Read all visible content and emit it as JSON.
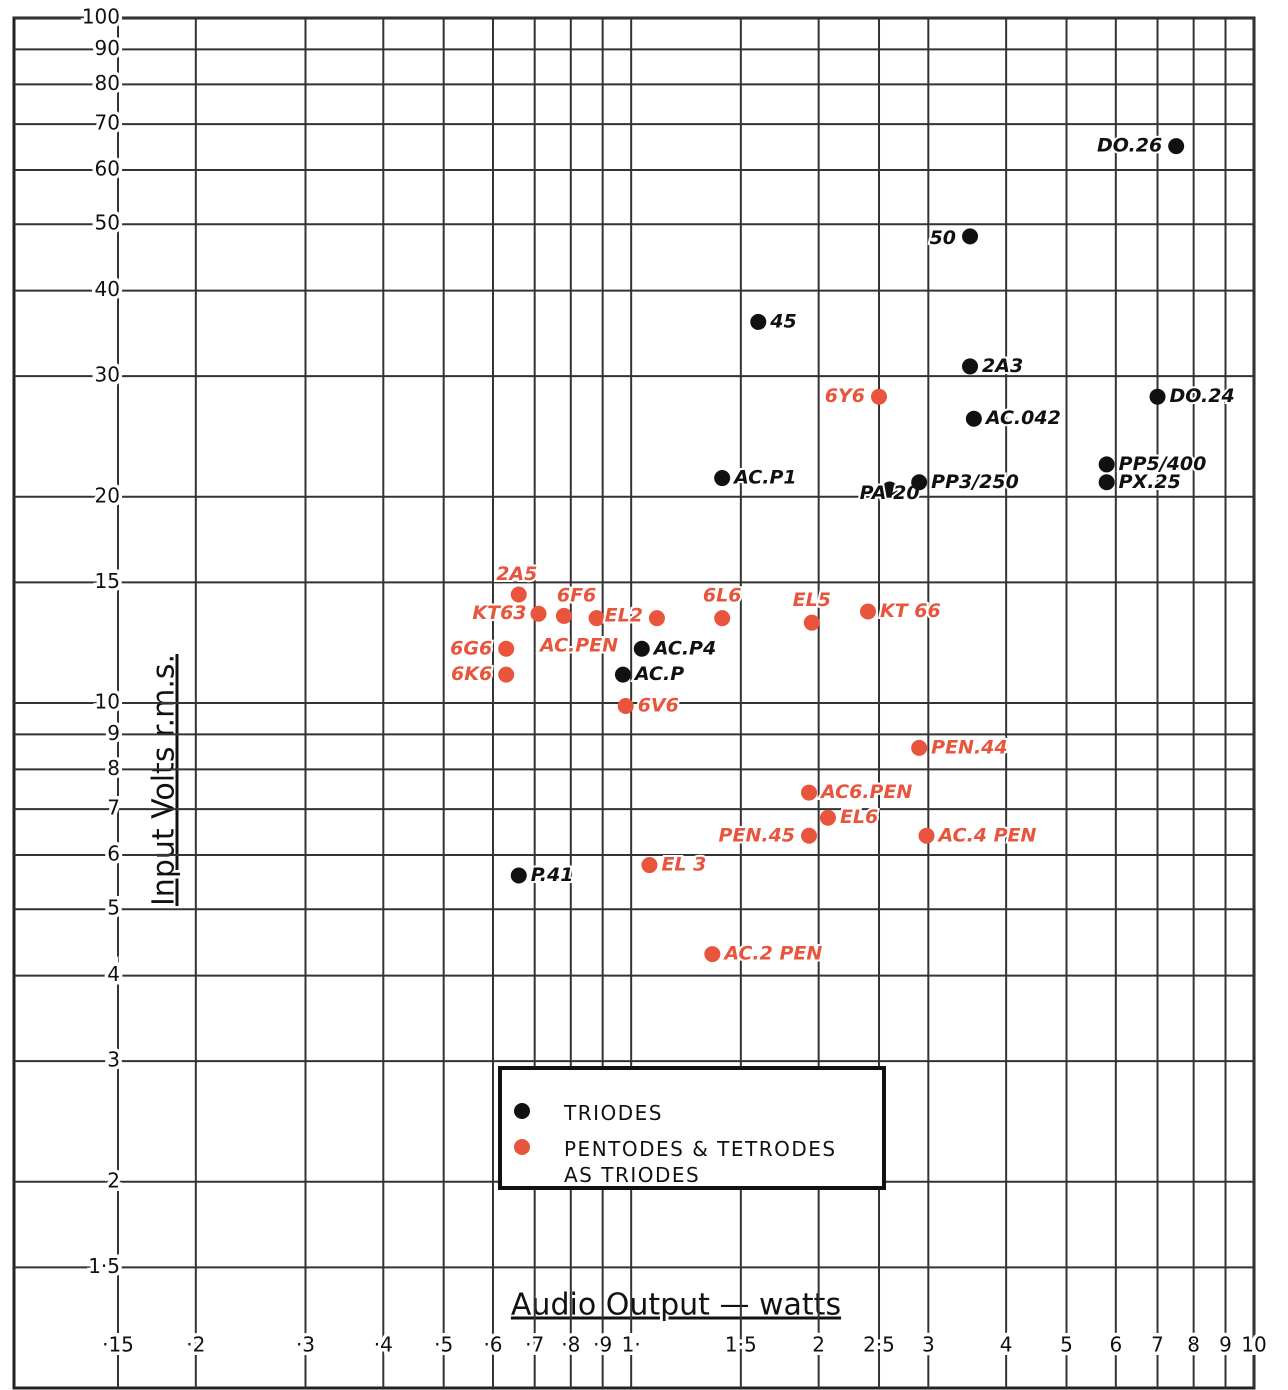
{
  "chart_data": {
    "type": "scatter",
    "x_label": "Audio Output — watts",
    "y_label": "Input Volts r.m.s.",
    "xscale": "log",
    "yscale": "log",
    "grid": true,
    "legend": "lower center",
    "xlim": [
      0.15,
      10
    ],
    "ylim": [
      1,
      100
    ],
    "xticks": [
      {
        "value": 0.15,
        "label": "·15"
      },
      {
        "value": 0.2,
        "label": "·2"
      },
      {
        "value": 0.3,
        "label": "·3"
      },
      {
        "value": 0.4,
        "label": "·4"
      },
      {
        "value": 0.5,
        "label": "·5"
      },
      {
        "value": 0.6,
        "label": "·6"
      },
      {
        "value": 0.7,
        "label": "·7"
      },
      {
        "value": 0.8,
        "label": "·8"
      },
      {
        "value": 0.9,
        "label": "·9"
      },
      {
        "value": 1,
        "label": "1·"
      },
      {
        "value": 1.5,
        "label": "1·5"
      },
      2,
      {
        "value": 2.5,
        "label": "2·5"
      },
      3,
      4,
      5,
      6,
      7,
      8,
      9,
      10
    ],
    "yticks": [
      {
        "value": 1.5,
        "label": "1·5"
      },
      2,
      3,
      4,
      5,
      6,
      7,
      8,
      9,
      10,
      15,
      20,
      30,
      40,
      50,
      60,
      70,
      80,
      90,
      100
    ],
    "series": [
      {
        "name": "TRIODES",
        "color": "#111111",
        "labels": [
          "DO.26",
          "50",
          "45",
          "2A3",
          "AC.042",
          "DO.24",
          "AC.P1",
          "PA 20",
          "PP3/250",
          "PP5/400",
          "PX.25",
          "AC.P4",
          "AC.P",
          "P.41"
        ],
        "x": [
          7.5,
          3.5,
          1.6,
          3.5,
          3.55,
          7.0,
          1.4,
          2.6,
          2.9,
          5.8,
          5.8,
          1.04,
          0.97,
          0.66
        ],
        "values": [
          65,
          48,
          36,
          31,
          26,
          28,
          21.3,
          20.5,
          21,
          22.3,
          21,
          12,
          11,
          5.6
        ]
      },
      {
        "name": "PENTODES & TETRODES AS TRIODES",
        "color": "#e8553c",
        "labels": [
          "6Y6",
          "2A5",
          "KT63",
          "6F6",
          "AC.PEN",
          "EL2",
          "6L6",
          "EL5",
          "KT 66",
          "6G6",
          "6K6",
          "6V6",
          "PEN.44",
          "AC6.PEN",
          "EL6",
          "PEN.45",
          "AC.4 PEN",
          "EL 3",
          "AC.2 PEN"
        ],
        "x": [
          2.5,
          0.66,
          0.71,
          0.88,
          0.78,
          1.1,
          1.4,
          1.95,
          2.4,
          0.63,
          0.63,
          0.98,
          2.9,
          1.93,
          2.07,
          1.93,
          2.98,
          1.07,
          1.35
        ],
        "values": [
          28,
          14.4,
          13.5,
          13.3,
          13.4,
          13.3,
          13.3,
          13.1,
          13.6,
          12,
          11,
          9.9,
          8.6,
          7.4,
          6.8,
          6.4,
          6.4,
          5.8,
          4.3
        ]
      }
    ]
  }
}
